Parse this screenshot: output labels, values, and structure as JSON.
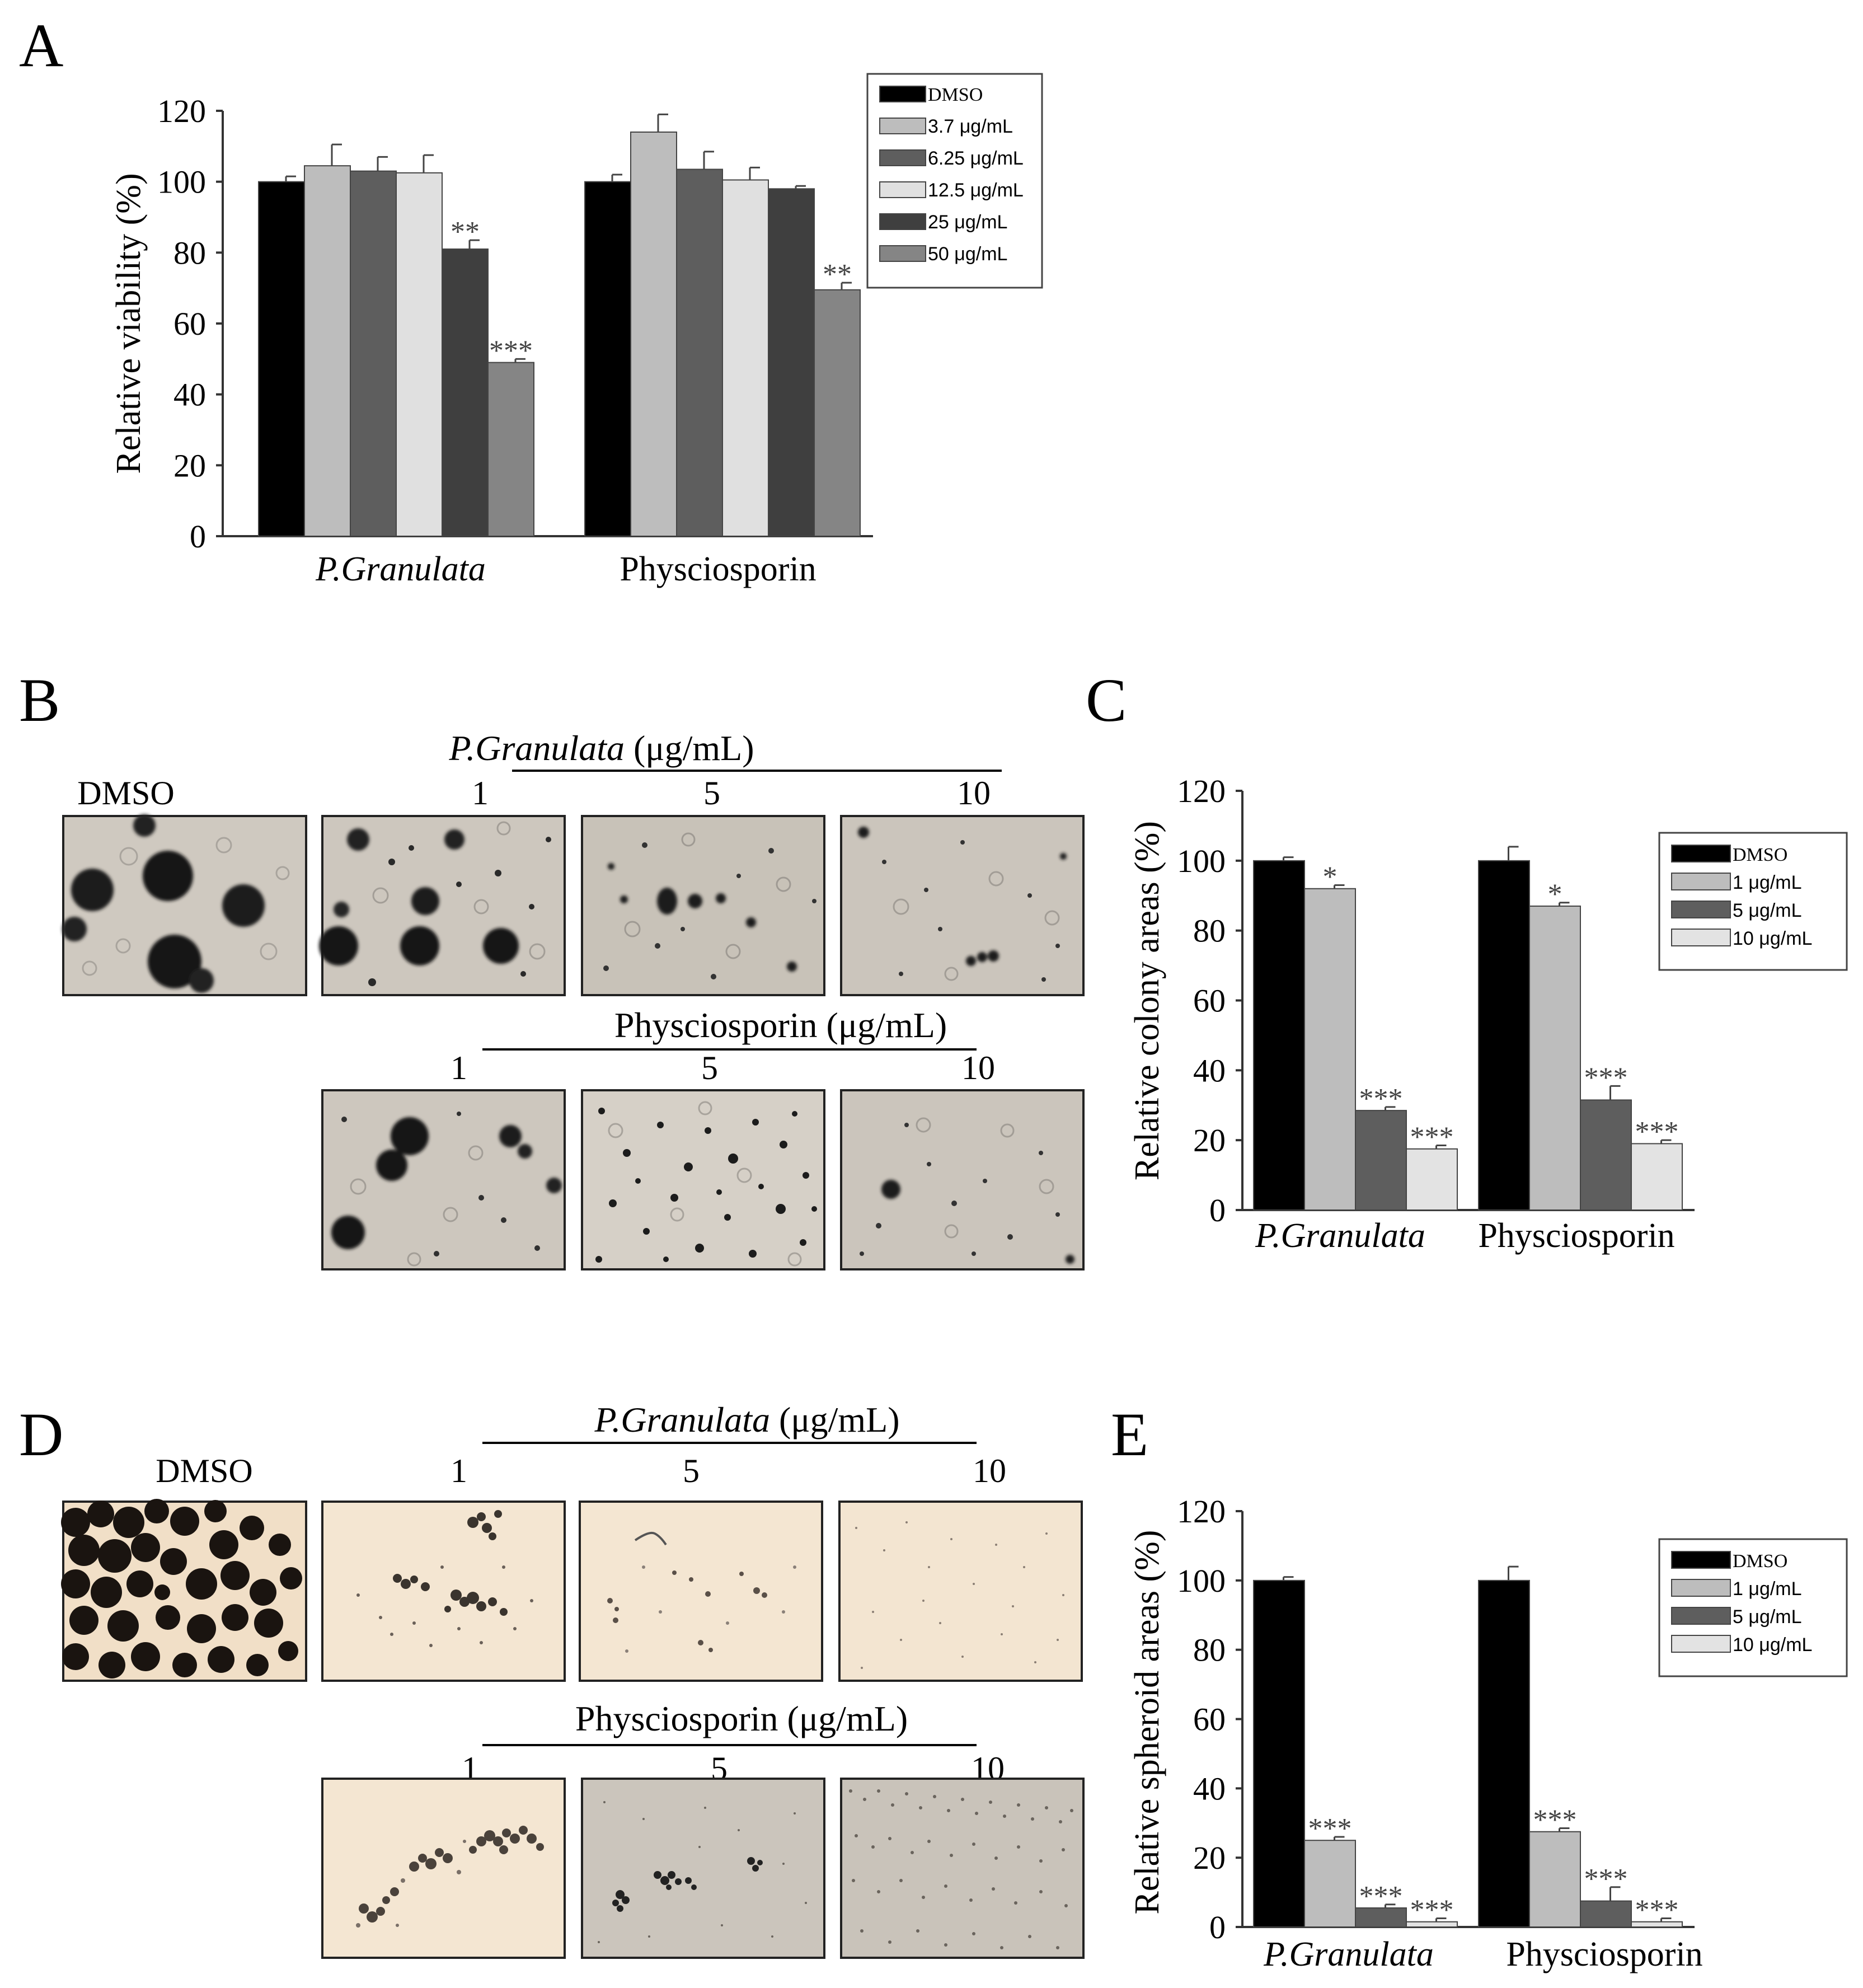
{
  "panels": {
    "A": {
      "letter": "A",
      "chart_data": {
        "type": "bar",
        "ylabel": "Relative viability (%)",
        "ylim": [
          0,
          120
        ],
        "yticks": [
          "0",
          "20",
          "40",
          "60",
          "80",
          "100",
          "120"
        ],
        "categories": [
          "P.Granulata",
          "Physciosporin"
        ],
        "series": [
          {
            "name": "DMSO",
            "color": "#000000",
            "values": [
              100,
              100
            ],
            "err": [
              1.5,
              2
            ],
            "sig": [
              "",
              ""
            ]
          },
          {
            "name": "3.7 μg/mL",
            "color": "#bdbdbd",
            "values": [
              104.5,
              114
            ],
            "err": [
              6,
              5
            ],
            "sig": [
              "",
              ""
            ]
          },
          {
            "name": "6.25 μg/mL",
            "color": "#5e5e5e",
            "values": [
              103,
              103.5
            ],
            "err": [
              4,
              5
            ],
            "sig": [
              "",
              ""
            ]
          },
          {
            "name": "12.5 μg/mL",
            "color": "#e0e0e0",
            "values": [
              102.5,
              100.5
            ],
            "err": [
              5,
              3.5
            ],
            "sig": [
              "",
              ""
            ]
          },
          {
            "name": "25 μg/mL",
            "color": "#3f3f3f",
            "values": [
              81,
              98
            ],
            "err": [
              2.5,
              0.8
            ],
            "sig": [
              "**",
              ""
            ]
          },
          {
            "name": "50 μg/mL",
            "color": "#858585",
            "values": [
              49,
              69.5
            ],
            "err": [
              1,
              2
            ],
            "sig": [
              "***",
              "**"
            ]
          }
        ],
        "legend_position": "top-right"
      }
    },
    "B": {
      "letter": "B",
      "top_label": "P.Granulata",
      "top_unit": " (μg/mL)",
      "bottom_label": "Physciosporin (μg/mL)",
      "dmso_label": "DMSO",
      "concentrations": [
        "1",
        "5",
        "10"
      ]
    },
    "C": {
      "letter": "C",
      "chart_data": {
        "type": "bar",
        "ylabel": "Relative colony areas (%)",
        "ylim": [
          0,
          120
        ],
        "yticks": [
          "0",
          "20",
          "40",
          "60",
          "80",
          "100",
          "120"
        ],
        "categories": [
          "P.Granulata",
          "Physciosporin"
        ],
        "series": [
          {
            "name": "DMSO",
            "color": "#000000",
            "values": [
              100,
              100
            ],
            "err": [
              1,
              4
            ],
            "sig": [
              "",
              ""
            ]
          },
          {
            "name": "1 μg/mL",
            "color": "#bdbdbd",
            "values": [
              92,
              87
            ],
            "err": [
              1,
              1
            ],
            "sig": [
              "*",
              "*"
            ]
          },
          {
            "name": "5 μg/mL",
            "color": "#5e5e5e",
            "values": [
              28.5,
              31.5
            ],
            "err": [
              1,
              4
            ],
            "sig": [
              "***",
              "***"
            ]
          },
          {
            "name": "10 μg/mL",
            "color": "#e3e3e3",
            "values": [
              17.5,
              19
            ],
            "err": [
              1,
              1
            ],
            "sig": [
              "***",
              "***"
            ]
          }
        ],
        "legend_position": "top-right"
      }
    },
    "D": {
      "letter": "D",
      "top_label": "P.Granulata",
      "top_unit": " (μg/mL)",
      "bottom_label": "Physciosporin (μg/mL)",
      "dmso_label": "DMSO",
      "concentrations": [
        "1",
        "5",
        "10"
      ]
    },
    "E": {
      "letter": "E",
      "chart_data": {
        "type": "bar",
        "ylabel": "Relative spheroid areas (%)",
        "ylim": [
          0,
          120
        ],
        "yticks": [
          "0",
          "20",
          "40",
          "60",
          "80",
          "100",
          "120"
        ],
        "categories": [
          "P.Granulata",
          "Physciosporin"
        ],
        "series": [
          {
            "name": "DMSO",
            "color": "#000000",
            "values": [
              100,
              100
            ],
            "err": [
              1,
              4
            ],
            "sig": [
              "",
              ""
            ]
          },
          {
            "name": "1 μg/mL",
            "color": "#bdbdbd",
            "values": [
              25,
              27.5
            ],
            "err": [
              1,
              1
            ],
            "sig": [
              "***",
              "***"
            ]
          },
          {
            "name": "5 μg/mL",
            "color": "#5e5e5e",
            "values": [
              5.5,
              7.5
            ],
            "err": [
              1,
              4
            ],
            "sig": [
              "***",
              "***"
            ]
          },
          {
            "name": "10 μg/mL",
            "color": "#e3e3e3",
            "values": [
              1.5,
              1.5
            ],
            "err": [
              1,
              1
            ],
            "sig": [
              "***",
              "***"
            ]
          }
        ],
        "legend_position": "top-right"
      }
    }
  }
}
